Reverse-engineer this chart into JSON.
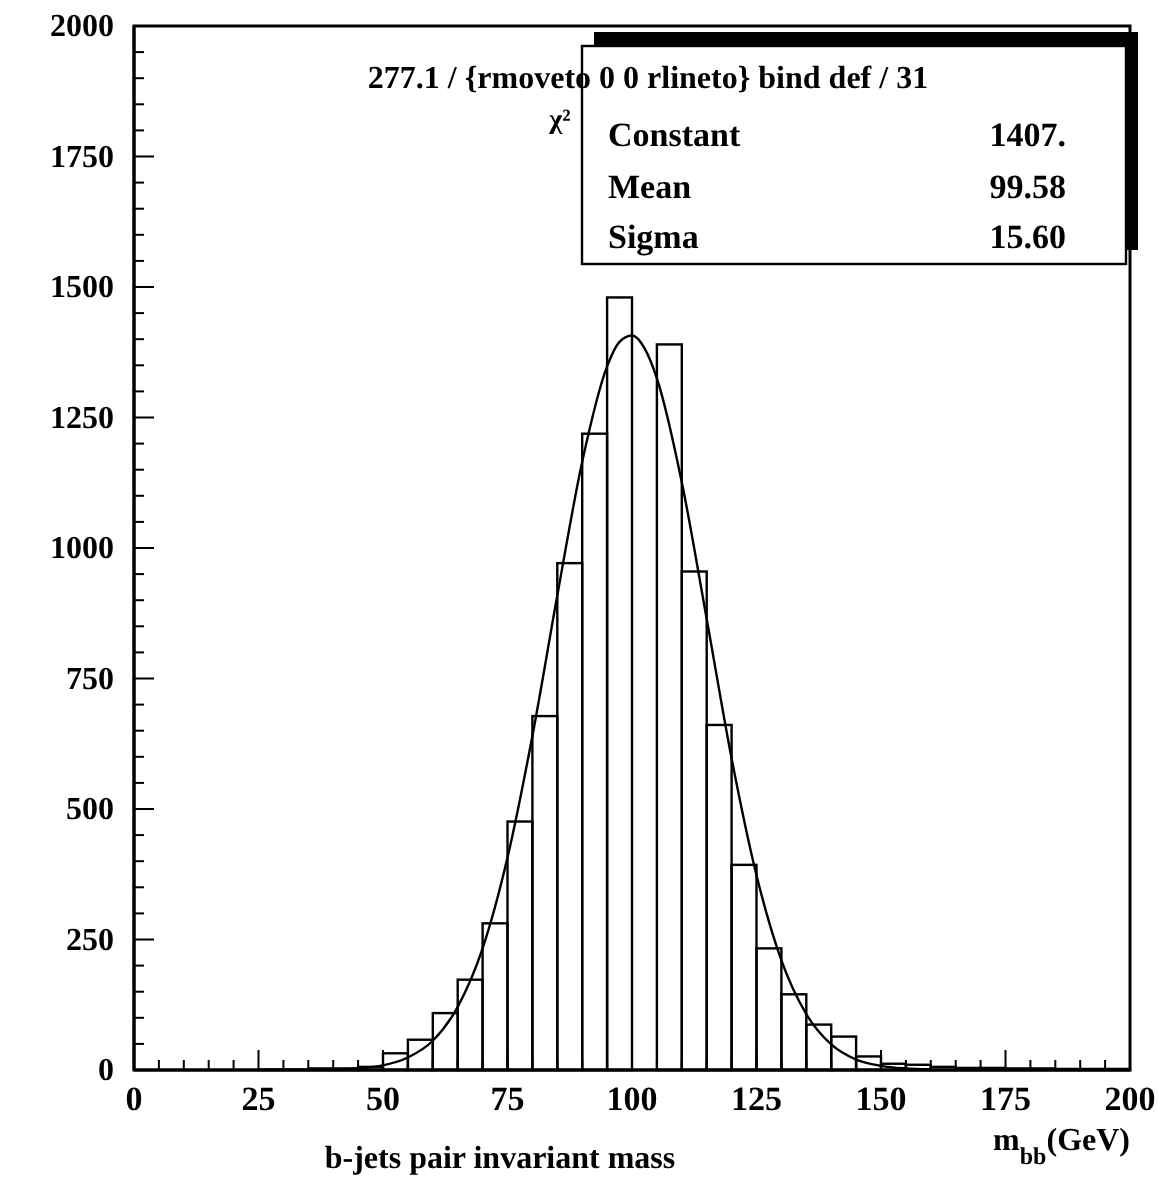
{
  "chart_data": {
    "type": "histogram",
    "xlabel": "b-jets pair invariant mass",
    "bins": [
      0,
      5,
      10,
      15,
      20,
      25,
      30,
      35,
      40,
      45,
      50,
      55,
      60,
      65,
      70,
      75,
      80,
      85,
      90,
      95,
      100,
      105,
      110,
      115,
      120,
      125,
      130,
      135,
      140,
      145,
      150,
      155,
      160,
      165,
      170,
      175,
      180,
      185,
      190,
      195,
      200
    ],
    "values": [
      0,
      0,
      0,
      0,
      0,
      1,
      1,
      3,
      3,
      6,
      32,
      58,
      109,
      173,
      281,
      476,
      678,
      971,
      1219,
      1480,
      null,
      1390,
      955,
      661,
      393,
      233,
      145,
      87,
      64,
      26,
      12,
      10,
      6,
      4,
      4,
      3,
      3,
      2,
      2,
      2
    ],
    "series": [
      {
        "type": "line",
        "x": [
          40,
          45,
          50,
          55,
          60,
          65,
          70,
          75,
          80,
          85,
          90,
          95,
          97.5,
          100,
          102.5,
          105,
          110,
          115,
          120,
          125,
          130,
          135,
          140,
          145,
          150,
          155,
          160
        ],
        "values": [
          1,
          3,
          9,
          24,
          56,
          121,
          233,
          407,
          640,
          909,
          1165,
          1348,
          1395,
          1407,
          1383,
          1325,
          1126,
          864,
          597,
          373,
          210,
          107,
          49,
          20,
          8,
          3,
          1
        ]
      }
    ],
    "xlim": [
      0,
      200
    ],
    "xticks": [
      0,
      {
        "value": 5,
        "label": null
      },
      {
        "value": 10,
        "label": null
      },
      {
        "value": 15,
        "label": null
      },
      {
        "value": 20,
        "label": null
      },
      25,
      {
        "value": 30,
        "label": null
      },
      {
        "value": 35,
        "label": null
      },
      {
        "value": 40,
        "label": null
      },
      {
        "value": 45,
        "label": null
      },
      50,
      {
        "value": 55,
        "label": null
      },
      {
        "value": 60,
        "label": null
      },
      {
        "value": 65,
        "label": null
      },
      {
        "value": 70,
        "label": null
      },
      75,
      {
        "value": 80,
        "label": null
      },
      {
        "value": 85,
        "label": null
      },
      {
        "value": 90,
        "label": null
      },
      {
        "value": 95,
        "label": null
      },
      100,
      {
        "value": 105,
        "label": null
      },
      {
        "value": 110,
        "label": null
      },
      {
        "value": 115,
        "label": null
      },
      {
        "value": 120,
        "label": null
      },
      125,
      {
        "value": 130,
        "label": null
      },
      {
        "value": 135,
        "label": null
      },
      {
        "value": 140,
        "label": null
      },
      {
        "value": 145,
        "label": null
      },
      150,
      {
        "value": 155,
        "label": null
      },
      {
        "value": 160,
        "label": null
      },
      {
        "value": 165,
        "label": null
      },
      {
        "value": 170,
        "label": null
      },
      175,
      {
        "value": 180,
        "label": null
      },
      {
        "value": 185,
        "label": null
      },
      {
        "value": 190,
        "label": null
      },
      {
        "value": 195,
        "label": null
      },
      200
    ],
    "ylim": [
      0,
      2000
    ],
    "yticks": [
      0,
      {
        "value": 50,
        "label": null
      },
      {
        "value": 100,
        "label": null
      },
      {
        "value": 150,
        "label": null
      },
      {
        "value": 200,
        "label": null
      },
      250,
      {
        "value": 300,
        "label": null
      },
      {
        "value": 350,
        "label": null
      },
      {
        "value": 400,
        "label": null
      },
      {
        "value": 450,
        "label": null
      },
      500,
      {
        "value": 550,
        "label": null
      },
      {
        "value": 600,
        "label": null
      },
      {
        "value": 650,
        "label": null
      },
      {
        "value": 700,
        "label": null
      },
      750,
      {
        "value": 800,
        "label": null
      },
      {
        "value": 850,
        "label": null
      },
      {
        "value": 900,
        "label": null
      },
      {
        "value": 950,
        "label": null
      },
      1000,
      {
        "value": 1050,
        "label": null
      },
      {
        "value": 1100,
        "label": null
      },
      {
        "value": 1150,
        "label": null
      },
      {
        "value": 1200,
        "label": null
      },
      1250,
      {
        "value": 1300,
        "label": null
      },
      {
        "value": 1350,
        "label": null
      },
      {
        "value": 1400,
        "label": null
      },
      {
        "value": 1450,
        "label": null
      },
      1500,
      {
        "value": 1550,
        "label": null
      },
      {
        "value": 1600,
        "label": null
      },
      {
        "value": 1650,
        "label": null
      },
      {
        "value": 1700,
        "label": null
      },
      1750,
      {
        "value": 1800,
        "label": null
      },
      {
        "value": 1850,
        "label": null
      },
      {
        "value": 1900,
        "label": null
      },
      {
        "value": 1950,
        "label": null
      },
      2000
    ],
    "grid": false,
    "annotations": [
      "m$_{bb}$(GeV)",
      "277.1 / {rmoveto 0 0 rlineto} bind def / 31",
      "χ²",
      "Constant",
      "1407.",
      "Mean",
      "99.58",
      "Sigma",
      "15.60"
    ]
  }
}
